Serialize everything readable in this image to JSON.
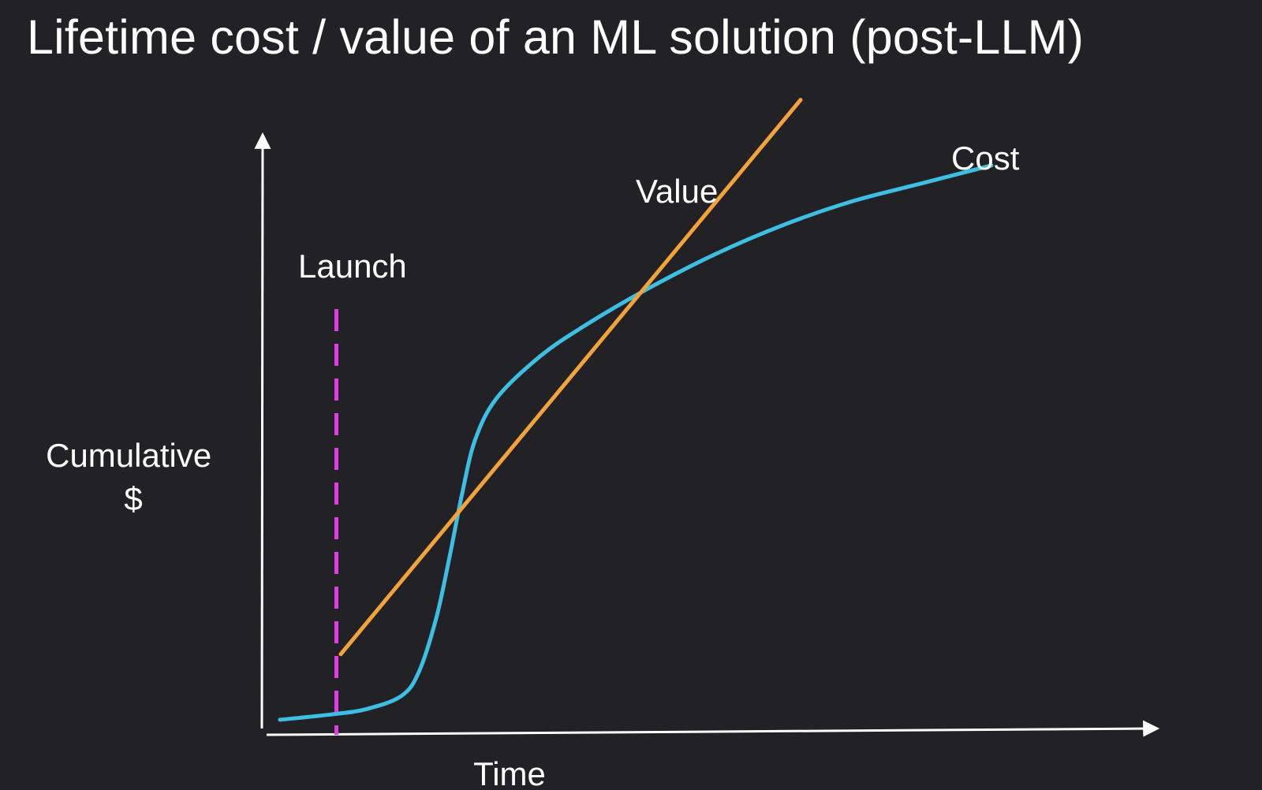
{
  "title": "Lifetime cost / value of an ML solution (post-LLM)",
  "colors": {
    "background": "#222125",
    "axes": "#ffffff",
    "text": "#ffffff",
    "value_line": "#f4a33a",
    "cost_line": "#3cbfe3",
    "launch_marker": "#e33ce8"
  },
  "chart_data": {
    "type": "line",
    "xlabel": "Time",
    "ylabel_lines": [
      "Cumulative",
      "$"
    ],
    "xlim": [
      0,
      100
    ],
    "ylim": [
      0,
      100
    ],
    "grid": false,
    "ticks": "none",
    "series": [
      {
        "name": "Cost",
        "color": "#3cbfe3",
        "x": [
          2,
          8,
          12,
          16,
          18,
          20,
          21.5,
          23,
          24.5,
          27,
          32,
          37,
          44,
          52,
          60,
          68,
          76,
          84
        ],
        "y": [
          2,
          2.9,
          3.8,
          6,
          10,
          19,
          29,
          40,
          49,
          56,
          63,
          68,
          74,
          80,
          85,
          89,
          92,
          95
        ]
      },
      {
        "name": "Value",
        "color": "#f4a33a",
        "x": [
          9,
          62
        ],
        "y": [
          13,
          106
        ]
      }
    ],
    "annotations": [
      {
        "type": "vline",
        "label": "Launch",
        "x": 8.5,
        "style": "dashed",
        "color": "#e33ce8"
      }
    ]
  }
}
